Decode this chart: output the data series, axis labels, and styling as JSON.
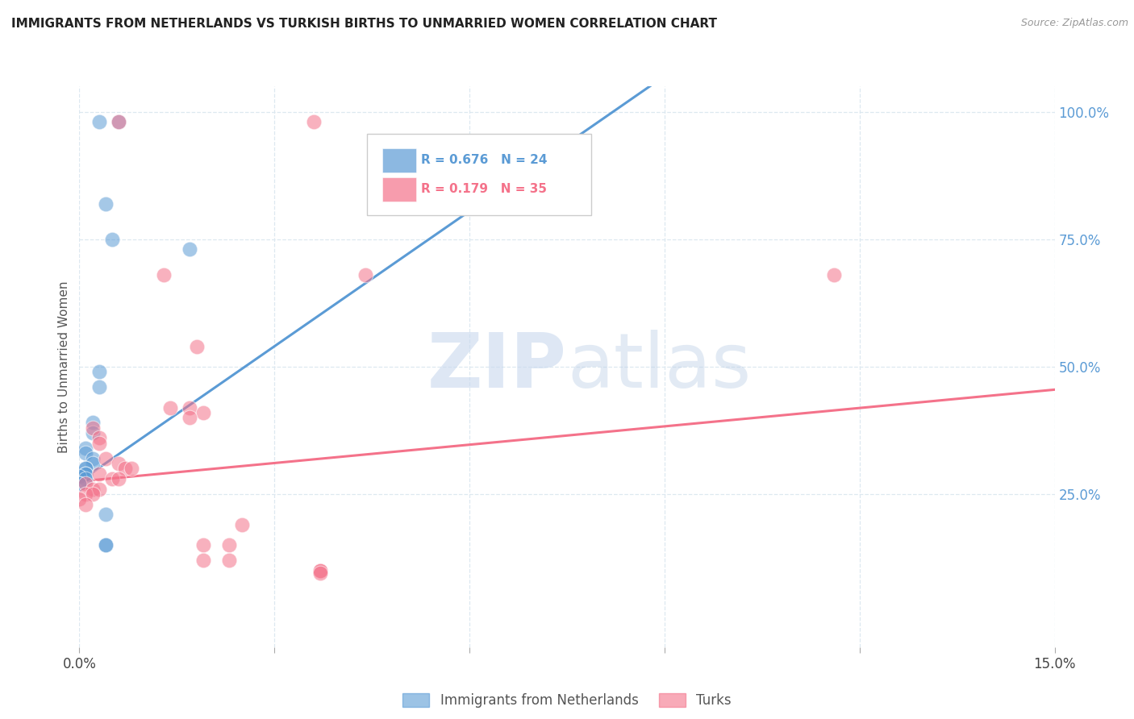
{
  "title": "IMMIGRANTS FROM NETHERLANDS VS TURKISH BIRTHS TO UNMARRIED WOMEN CORRELATION CHART",
  "source": "Source: ZipAtlas.com",
  "ylabel": "Births to Unmarried Women",
  "xlim": [
    0.0,
    0.15
  ],
  "ylim": [
    -0.05,
    1.05
  ],
  "yticks_right": [
    0.25,
    0.5,
    0.75,
    1.0
  ],
  "ytick_labels_right": [
    "25.0%",
    "50.0%",
    "75.0%",
    "100.0%"
  ],
  "xticks": [
    0.0,
    0.03,
    0.06,
    0.09,
    0.12,
    0.15
  ],
  "xtick_labels": [
    "0.0%",
    "",
    "",
    "",
    "",
    "15.0%"
  ],
  "blue_color": "#5b9bd5",
  "pink_color": "#f4728a",
  "blue_series": [
    [
      0.003,
      0.98
    ],
    [
      0.006,
      0.98
    ],
    [
      0.004,
      0.82
    ],
    [
      0.005,
      0.75
    ],
    [
      0.017,
      0.73
    ],
    [
      0.003,
      0.49
    ],
    [
      0.003,
      0.46
    ],
    [
      0.002,
      0.39
    ],
    [
      0.002,
      0.37
    ],
    [
      0.001,
      0.34
    ],
    [
      0.001,
      0.33
    ],
    [
      0.002,
      0.32
    ],
    [
      0.002,
      0.31
    ],
    [
      0.001,
      0.3
    ],
    [
      0.001,
      0.3
    ],
    [
      0.001,
      0.29
    ],
    [
      0.001,
      0.29
    ],
    [
      0.0,
      0.285
    ],
    [
      0.001,
      0.28
    ],
    [
      0.0,
      0.27
    ],
    [
      0.0,
      0.27
    ],
    [
      0.004,
      0.21
    ],
    [
      0.004,
      0.15
    ],
    [
      0.004,
      0.15
    ]
  ],
  "pink_series": [
    [
      0.006,
      0.98
    ],
    [
      0.036,
      0.98
    ],
    [
      0.013,
      0.68
    ],
    [
      0.044,
      0.68
    ],
    [
      0.116,
      0.68
    ],
    [
      0.018,
      0.54
    ],
    [
      0.014,
      0.42
    ],
    [
      0.017,
      0.42
    ],
    [
      0.019,
      0.41
    ],
    [
      0.017,
      0.4
    ],
    [
      0.002,
      0.38
    ],
    [
      0.003,
      0.36
    ],
    [
      0.003,
      0.35
    ],
    [
      0.004,
      0.32
    ],
    [
      0.006,
      0.31
    ],
    [
      0.007,
      0.3
    ],
    [
      0.008,
      0.3
    ],
    [
      0.003,
      0.29
    ],
    [
      0.005,
      0.28
    ],
    [
      0.006,
      0.28
    ],
    [
      0.001,
      0.27
    ],
    [
      0.002,
      0.26
    ],
    [
      0.003,
      0.26
    ],
    [
      0.001,
      0.25
    ],
    [
      0.002,
      0.25
    ],
    [
      0.0,
      0.24
    ],
    [
      0.001,
      0.23
    ],
    [
      0.025,
      0.19
    ],
    [
      0.019,
      0.15
    ],
    [
      0.023,
      0.15
    ],
    [
      0.019,
      0.12
    ],
    [
      0.023,
      0.12
    ],
    [
      0.037,
      0.1
    ],
    [
      0.037,
      0.1
    ],
    [
      0.037,
      0.095
    ]
  ],
  "blue_line_x": [
    0.0,
    0.15
  ],
  "blue_line_y": [
    0.275,
    1.6
  ],
  "pink_line_x": [
    0.0,
    0.15
  ],
  "pink_line_y": [
    0.275,
    0.455
  ],
  "watermark_zip": "ZIP",
  "watermark_atlas": "atlas",
  "background_color": "#ffffff",
  "grid_color": "#dde8f0"
}
